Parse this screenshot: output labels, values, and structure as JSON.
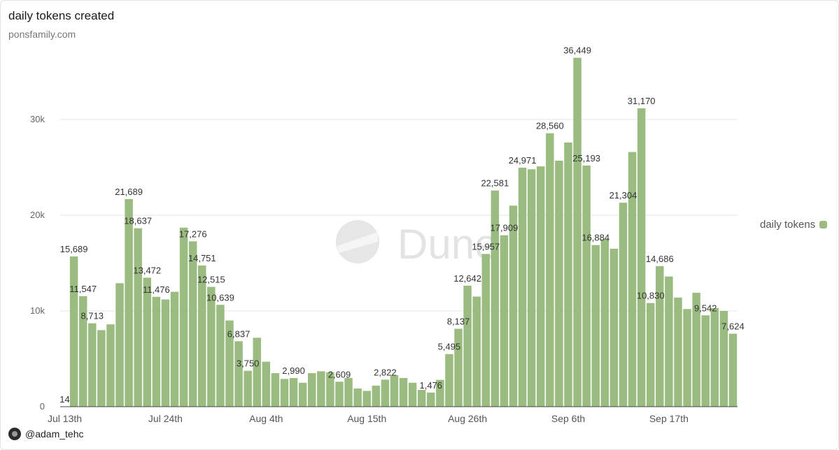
{
  "header": {
    "title": "daily tokens created",
    "subtitle": "ponsfamily.com"
  },
  "footer": {
    "author": "@adam_tehc"
  },
  "watermark": "Dune",
  "legend": {
    "label": "daily tokens",
    "color": "#9bbc80"
  },
  "chart_data": {
    "type": "bar",
    "title": "daily tokens created",
    "subtitle": "ponsfamily.com",
    "xlabel": "",
    "ylabel": "",
    "ylim": [
      0,
      37000
    ],
    "y_ticks": [
      0,
      10000,
      20000,
      30000
    ],
    "y_tick_labels": [
      "0",
      "10k",
      "20k",
      "30k"
    ],
    "x_tick_labels": [
      {
        "label": "Jul 13th",
        "index": 0
      },
      {
        "label": "Jul 24th",
        "index": 11
      },
      {
        "label": "Aug 4th",
        "index": 22
      },
      {
        "label": "Aug 15th",
        "index": 33
      },
      {
        "label": "Aug 26th",
        "index": 44
      },
      {
        "label": "Sep 6th",
        "index": 55
      },
      {
        "label": "Sep 17th",
        "index": 66
      }
    ],
    "grid": true,
    "legend_position": "right",
    "bar_color": "#9bbc80",
    "series": [
      {
        "name": "daily tokens",
        "values": [
          14,
          15689,
          11547,
          8713,
          8000,
          8600,
          12900,
          21689,
          18637,
          13472,
          11476,
          11200,
          12000,
          18700,
          17276,
          14751,
          12515,
          10639,
          9000,
          6837,
          3750,
          7200,
          4700,
          3500,
          2900,
          2990,
          2500,
          3500,
          3700,
          3600,
          2609,
          3000,
          1900,
          1650,
          2200,
          2822,
          3300,
          3000,
          2500,
          1750,
          1476,
          2800,
          5495,
          8137,
          12642,
          11500,
          15957,
          22581,
          17909,
          21000,
          24971,
          24800,
          25100,
          28560,
          25700,
          27600,
          36449,
          25193,
          16884,
          17500,
          16500,
          21304,
          26600,
          31170,
          10830,
          14686,
          13600,
          11400,
          10200,
          11900,
          9542,
          10300,
          10000,
          7624
        ]
      }
    ],
    "data_labels": [
      {
        "index": 0,
        "text": "14"
      },
      {
        "index": 1,
        "text": "15,689"
      },
      {
        "index": 2,
        "text": "11,547"
      },
      {
        "index": 3,
        "text": "8,713"
      },
      {
        "index": 7,
        "text": "21,689"
      },
      {
        "index": 8,
        "text": "18,637"
      },
      {
        "index": 9,
        "text": "13,472"
      },
      {
        "index": 10,
        "text": "11,476"
      },
      {
        "index": 14,
        "text": "17,276"
      },
      {
        "index": 15,
        "text": "14,751"
      },
      {
        "index": 16,
        "text": "12,515"
      },
      {
        "index": 17,
        "text": "10,639"
      },
      {
        "index": 19,
        "text": "6,837"
      },
      {
        "index": 20,
        "text": "3,750"
      },
      {
        "index": 25,
        "text": "2,990"
      },
      {
        "index": 30,
        "text": "2,609"
      },
      {
        "index": 35,
        "text": "2,822"
      },
      {
        "index": 40,
        "text": "1,476"
      },
      {
        "index": 42,
        "text": "5,495"
      },
      {
        "index": 43,
        "text": "8,137"
      },
      {
        "index": 44,
        "text": "12,642"
      },
      {
        "index": 46,
        "text": "15,957"
      },
      {
        "index": 47,
        "text": "22,581"
      },
      {
        "index": 48,
        "text": "17,909"
      },
      {
        "index": 50,
        "text": "24,971"
      },
      {
        "index": 53,
        "text": "28,560"
      },
      {
        "index": 56,
        "text": "36,449"
      },
      {
        "index": 57,
        "text": "25,193"
      },
      {
        "index": 58,
        "text": "16,884"
      },
      {
        "index": 61,
        "text": "21,304"
      },
      {
        "index": 63,
        "text": "31,170"
      },
      {
        "index": 64,
        "text": "10,830"
      },
      {
        "index": 65,
        "text": "14,686"
      },
      {
        "index": 70,
        "text": "9,542"
      },
      {
        "index": 73,
        "text": "7,624"
      }
    ]
  }
}
